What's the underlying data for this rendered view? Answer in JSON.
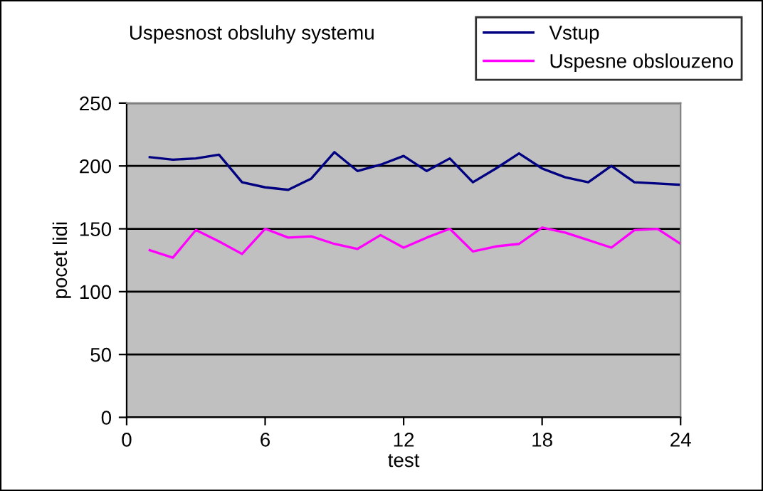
{
  "chart_data": {
    "type": "line",
    "title": "Uspesnost obsluhy systemu",
    "xlabel": "test",
    "ylabel": "pocet lidi",
    "x": [
      1,
      2,
      3,
      4,
      5,
      6,
      7,
      8,
      9,
      10,
      11,
      12,
      13,
      14,
      15,
      16,
      17,
      18,
      19,
      20,
      21,
      22,
      23,
      24
    ],
    "series": [
      {
        "name": "Vstup",
        "color": "#000080",
        "values": [
          207,
          205,
          206,
          209,
          187,
          183,
          181,
          190,
          211,
          196,
          201,
          208,
          196,
          206,
          187,
          198,
          210,
          198,
          191,
          187,
          200,
          187,
          186,
          185
        ]
      },
      {
        "name": "Uspesne obslouzeno",
        "color": "#ff00ff",
        "values": [
          133,
          127,
          149,
          140,
          130,
          150,
          143,
          144,
          138,
          134,
          145,
          135,
          143,
          150,
          132,
          136,
          138,
          151,
          147,
          141,
          135,
          149,
          150,
          138
        ]
      }
    ],
    "xlim": [
      0,
      24
    ],
    "xticks": [
      0,
      6,
      12,
      18,
      24
    ],
    "ylim": [
      0,
      250
    ],
    "yticks": [
      0,
      50,
      100,
      150,
      200,
      250
    ],
    "grid": "y",
    "legend": "top right",
    "marker": "none",
    "line_style": "solid"
  }
}
